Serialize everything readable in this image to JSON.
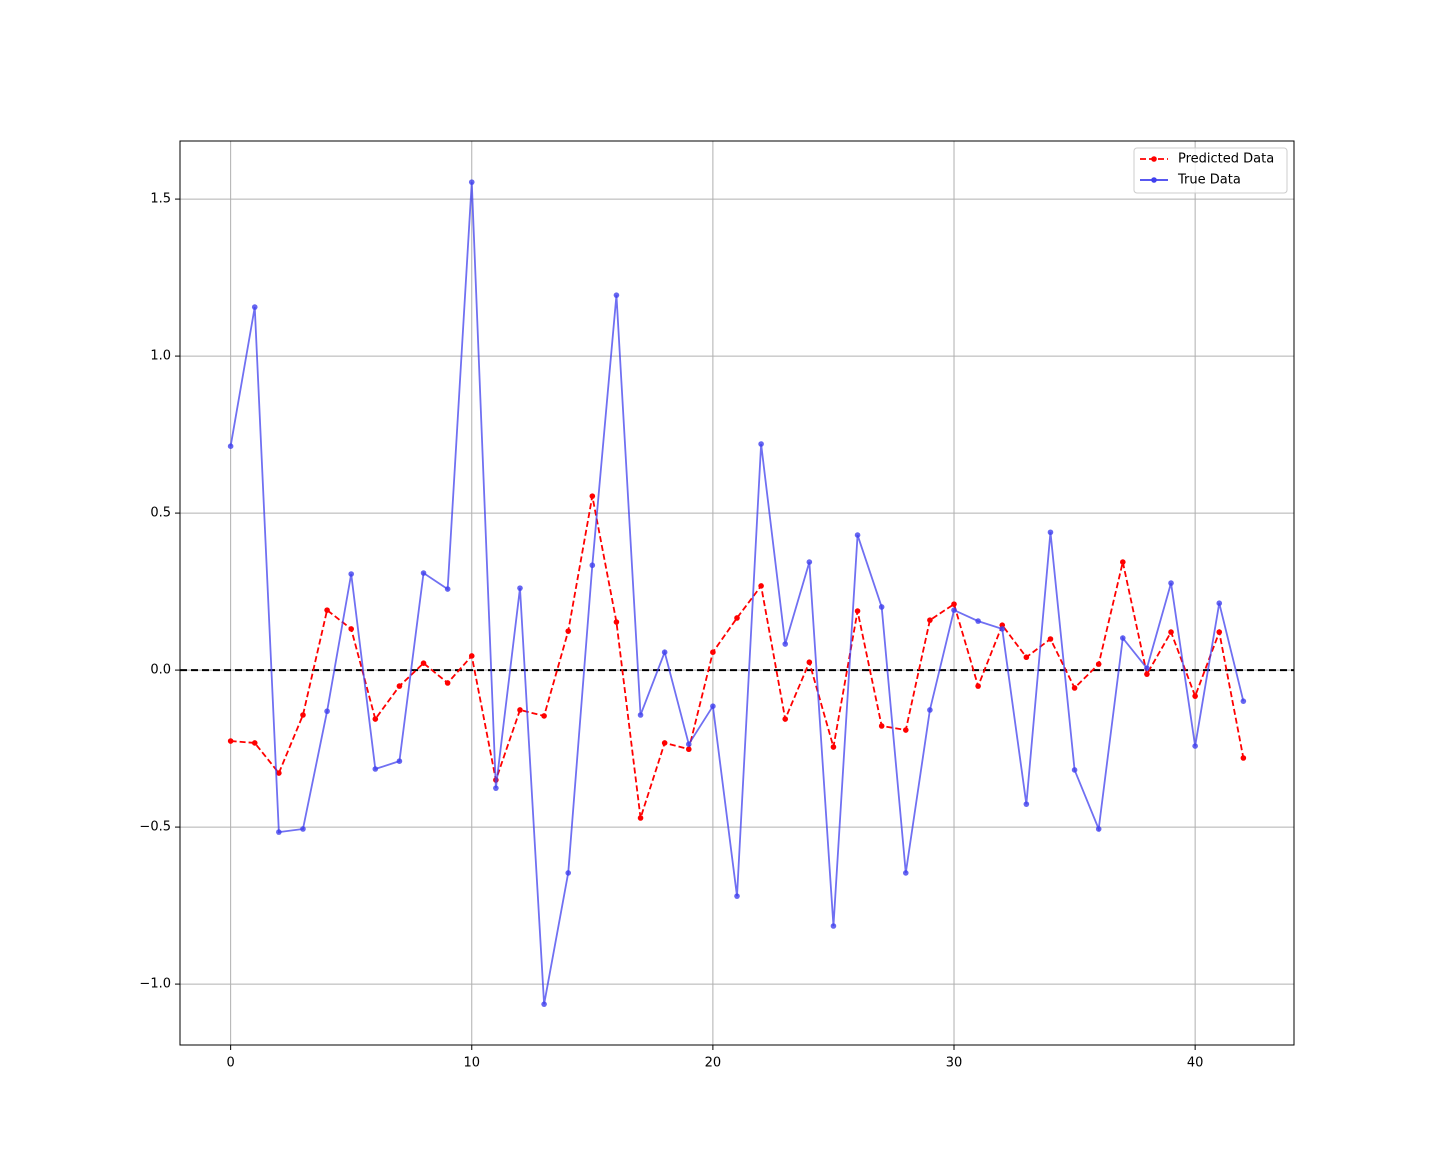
{
  "chart_data": {
    "type": "line",
    "x": [
      0,
      1,
      2,
      3,
      4,
      5,
      6,
      7,
      8,
      9,
      10,
      11,
      12,
      13,
      14,
      15,
      16,
      17,
      18,
      19,
      20,
      21,
      22,
      23,
      24,
      25,
      26,
      27,
      28,
      29,
      30,
      31,
      32,
      33,
      34,
      35,
      36,
      37,
      38,
      39,
      40,
      41,
      42
    ],
    "series": [
      {
        "name": "Predicted Data",
        "color": "#ff0000",
        "dashed": true,
        "values": [
          -0.226,
          -0.232,
          -0.328,
          -0.143,
          0.191,
          0.131,
          -0.156,
          -0.051,
          0.022,
          -0.041,
          0.045,
          -0.35,
          -0.127,
          -0.146,
          0.124,
          0.554,
          0.153,
          -0.471,
          -0.232,
          -0.252,
          0.057,
          0.166,
          0.268,
          -0.156,
          0.025,
          -0.245,
          0.188,
          -0.178,
          -0.191,
          0.159,
          0.21,
          -0.051,
          0.143,
          0.041,
          0.099,
          -0.057,
          0.019,
          0.344,
          -0.013,
          0.121,
          -0.083,
          0.121,
          -0.28
        ]
      },
      {
        "name": "True Data",
        "color": "#4040ee",
        "dashed": false,
        "values": [
          0.713,
          1.156,
          -0.516,
          -0.506,
          -0.131,
          0.306,
          -0.315,
          -0.29,
          0.309,
          0.258,
          1.554,
          -0.376,
          0.261,
          -1.064,
          -0.646,
          0.334,
          1.194,
          -0.143,
          0.057,
          -0.236,
          -0.115,
          -0.72,
          0.72,
          0.083,
          0.344,
          -0.815,
          0.43,
          0.201,
          -0.646,
          -0.127,
          0.191,
          0.156,
          0.131,
          -0.427,
          0.439,
          -0.318,
          -0.506,
          0.102,
          0.006,
          0.277,
          -0.242,
          0.213,
          -0.099
        ]
      }
    ],
    "hline": 0,
    "xlim": [
      -2.1,
      44.1
    ],
    "xticks": [
      0,
      10,
      20,
      30,
      40
    ],
    "ylim": [
      -1.194,
      1.685
    ],
    "yticks": [
      {
        "value": -1.0,
        "label": "−1.0"
      },
      {
        "value": -0.5,
        "label": "−0.5"
      },
      {
        "value": 0,
        "label": "0.0"
      },
      0.5,
      {
        "value": 1.0,
        "label": "1.0"
      },
      1.5
    ],
    "grid": true,
    "legend": "upper-right"
  }
}
